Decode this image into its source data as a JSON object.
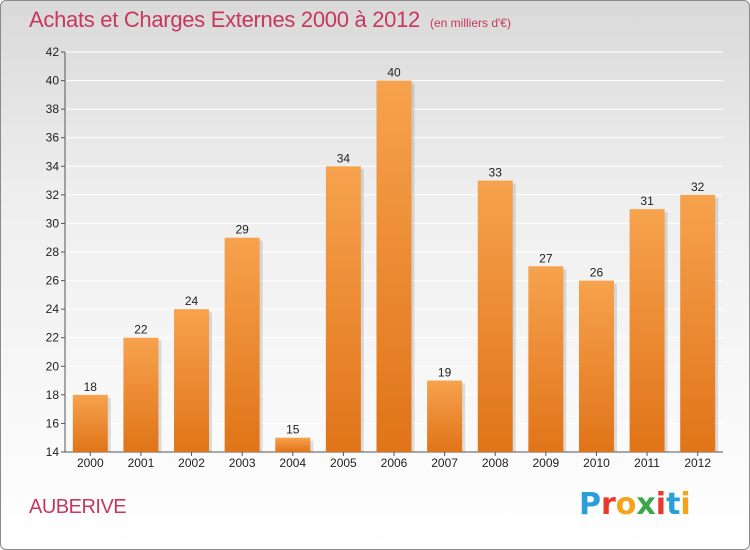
{
  "title": "Achats et Charges Externes 2000 à 2012",
  "unit_label": "(en milliers d'€)",
  "commune": "AUBERIVE",
  "logo": {
    "text": "Proxiti",
    "letter_colors": [
      "#2a9fd8",
      "#e8392b",
      "#f7a21b",
      "#3aa74a",
      "#e8392b",
      "#2a9fd8",
      "#f7a21b"
    ]
  },
  "colors": {
    "title": "#c8375f",
    "bar_top": "#f7a24e",
    "bar_bottom": "#e07418",
    "grid": "#ffffff"
  },
  "chart_data": {
    "type": "bar",
    "title": "Achats et Charges Externes 2000 à 2012",
    "subtitle": "(en milliers d'€)",
    "categories": [
      "2000",
      "2001",
      "2002",
      "2003",
      "2004",
      "2005",
      "2006",
      "2007",
      "2008",
      "2009",
      "2010",
      "2011",
      "2012"
    ],
    "values": [
      18,
      22,
      24,
      29,
      15,
      34,
      40,
      19,
      33,
      27,
      26,
      31,
      32
    ],
    "ylim": [
      14,
      42
    ],
    "yticks": [
      14,
      16,
      18,
      20,
      22,
      24,
      26,
      28,
      30,
      32,
      34,
      36,
      38,
      40,
      42
    ],
    "grid": true,
    "legend": "none"
  }
}
